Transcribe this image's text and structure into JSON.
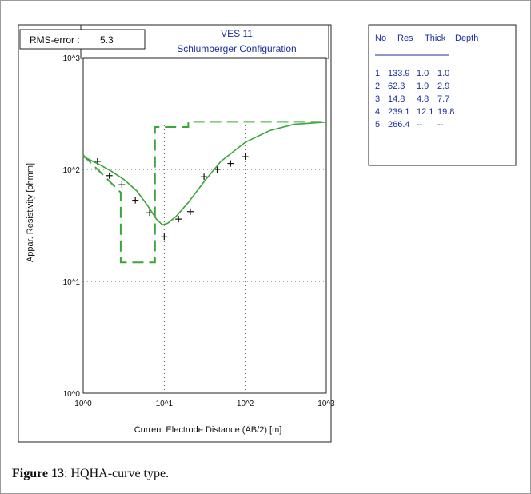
{
  "figure": {
    "caption_label": "Figure 13",
    "caption_text": ": HQHA-curve type."
  },
  "rms": {
    "label": "RMS-error :",
    "value": "5.3"
  },
  "header": {
    "title": "VES 11",
    "subtitle": "Schlumberger Configuration"
  },
  "table": {
    "columns": [
      "No",
      "Res",
      "Thick",
      "Depth"
    ],
    "rows": [
      [
        "1",
        "133.9",
        "1.0",
        "1.0"
      ],
      [
        "2",
        "62.3",
        "1.9",
        "2.9"
      ],
      [
        "3",
        "14.8",
        "4.8",
        "7.7"
      ],
      [
        "4",
        "239.1",
        "12.1",
        "19.8"
      ],
      [
        "5",
        "266.4",
        "--",
        "--"
      ]
    ]
  },
  "chart_data": {
    "type": "line",
    "xlabel": "Current Electrode Distance (AB/2) [m]",
    "ylabel": "Appar. Resistivity [ohmm]",
    "xscale": "log",
    "yscale": "log",
    "xlim": [
      1,
      1000
    ],
    "ylim": [
      1,
      1000
    ],
    "grid": true,
    "xticks": [
      1,
      10,
      100,
      1000
    ],
    "xtick_labels": [
      "10^0",
      "10^1",
      "10^2",
      "10^3"
    ],
    "yticks": [
      1,
      10,
      100,
      1000
    ],
    "ytick_labels": [
      "10^0",
      "10^1",
      "10^2",
      "10^3"
    ],
    "colors": {
      "model": "#3aa63a",
      "observed": "#111111"
    },
    "series": [
      {
        "kind": "scatter",
        "marker": "+",
        "points": [
          [
            1.5,
            118
          ],
          [
            2.1,
            88
          ],
          [
            3.0,
            73
          ],
          [
            4.4,
            53
          ],
          [
            6.6,
            41
          ],
          [
            10.0,
            25
          ],
          [
            15.0,
            36
          ],
          [
            21.0,
            42
          ],
          [
            31.0,
            86
          ],
          [
            45.0,
            100
          ],
          [
            66.0,
            113
          ],
          [
            100.0,
            130
          ]
        ]
      },
      {
        "kind": "line",
        "style": "solid",
        "points": [
          [
            1.0,
            130
          ],
          [
            1.5,
            113
          ],
          [
            2.2,
            97
          ],
          [
            3.2,
            81
          ],
          [
            4.6,
            64
          ],
          [
            6.3,
            47
          ],
          [
            8.0,
            36
          ],
          [
            9.5,
            32
          ],
          [
            11.0,
            33
          ],
          [
            14.0,
            38
          ],
          [
            20.0,
            51
          ],
          [
            32.0,
            80
          ],
          [
            50.0,
            118
          ],
          [
            100.0,
            175
          ],
          [
            200.0,
            222
          ],
          [
            400.0,
            253
          ],
          [
            1000.0,
            265
          ]
        ]
      },
      {
        "kind": "line",
        "style": "dashed",
        "points": [
          [
            1.0,
            133.9
          ],
          [
            2.9,
            62.3
          ],
          [
            2.9,
            14.8
          ],
          [
            7.7,
            14.8
          ],
          [
            7.7,
            239.1
          ],
          [
            19.8,
            239.1
          ],
          [
            19.8,
            266.4
          ],
          [
            1000.0,
            266.4
          ]
        ]
      }
    ]
  }
}
